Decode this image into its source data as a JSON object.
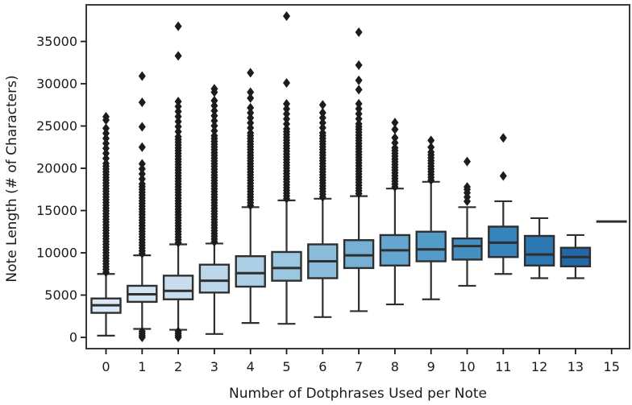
{
  "chart_data": {
    "type": "box",
    "title": "",
    "xlabel": "Number of Dotphrases Used per Note",
    "ylabel": "Note Length (# of Characters)",
    "ylim": [
      -1300,
      39300
    ],
    "grid": false,
    "legend": null,
    "y_ticks": [
      {
        "value": 0,
        "label": "0"
      },
      {
        "value": 5000,
        "label": "5000"
      },
      {
        "value": 10000,
        "label": "10000"
      },
      {
        "value": 15000,
        "label": "15000"
      },
      {
        "value": 20000,
        "label": "20000"
      },
      {
        "value": 25000,
        "label": "25000"
      },
      {
        "value": 30000,
        "label": "30000"
      },
      {
        "value": 35000,
        "label": "35000"
      }
    ],
    "colors": {
      "edge": "#2f2f2f",
      "flier": "#1c1c1c",
      "spine": "#3a3a3a",
      "tick": "#1a1a1a"
    },
    "categories": [
      {
        "label": "0",
        "color": "#dbe9f6",
        "single": false,
        "stats": {
          "whislo": 200,
          "q1": 2900,
          "med": 3800,
          "q3": 4600,
          "whishi": 7500
        },
        "fliers": {
          "low": [],
          "high_band": {
            "min": 7700,
            "max": 25200,
            "step": 330
          },
          "high_points": [
            25700,
            26100
          ]
        }
      },
      {
        "label": "1",
        "color": "#d2e3f1",
        "single": false,
        "stats": {
          "whislo": 1000,
          "q1": 4200,
          "med": 5100,
          "q3": 6100,
          "whishi": 9700
        },
        "fliers": {
          "low": [
            0,
            200,
            450,
            700
          ],
          "high_band": {
            "min": 9900,
            "max": 20900,
            "step": 330
          },
          "high_points": [
            22500,
            24900,
            27800,
            30900
          ]
        }
      },
      {
        "label": "2",
        "color": "#c9ddee",
        "single": false,
        "stats": {
          "whislo": 900,
          "q1": 4500,
          "med": 5500,
          "q3": 7300,
          "whishi": 11000
        },
        "fliers": {
          "low": [
            0,
            200,
            450,
            700
          ],
          "high_band": {
            "min": 11200,
            "max": 28200,
            "step": 330
          },
          "high_points": [
            33300,
            36800
          ]
        }
      },
      {
        "label": "3",
        "color": "#bdd7ea",
        "single": false,
        "stats": {
          "whislo": 400,
          "q1": 5300,
          "med": 6700,
          "q3": 8600,
          "whishi": 11100
        },
        "fliers": {
          "low": [],
          "high_band": {
            "min": 11300,
            "max": 28300,
            "step": 330
          },
          "high_points": [
            29000,
            29400
          ]
        }
      },
      {
        "label": "4",
        "color": "#adcfe6",
        "single": false,
        "stats": {
          "whislo": 1700,
          "q1": 6000,
          "med": 7600,
          "q3": 9600,
          "whishi": 15400
        },
        "fliers": {
          "low": [],
          "high_band": {
            "min": 15600,
            "max": 27200,
            "step": 330
          },
          "high_points": [
            28300,
            29000,
            31300
          ]
        }
      },
      {
        "label": "5",
        "color": "#9cc7e1",
        "single": false,
        "stats": {
          "whislo": 1600,
          "q1": 6700,
          "med": 8200,
          "q3": 10100,
          "whishi": 16200
        },
        "fliers": {
          "low": [],
          "high_band": {
            "min": 16400,
            "max": 27800,
            "step": 330
          },
          "high_points": [
            30100,
            38000
          ]
        }
      },
      {
        "label": "6",
        "color": "#89bcdb",
        "single": false,
        "stats": {
          "whislo": 2400,
          "q1": 7000,
          "med": 9000,
          "q3": 11000,
          "whishi": 16400
        },
        "fliers": {
          "low": [],
          "high_band": {
            "min": 16600,
            "max": 26900,
            "step": 330
          },
          "high_points": [
            27500
          ]
        }
      },
      {
        "label": "7",
        "color": "#76b1d5",
        "single": false,
        "stats": {
          "whislo": 3100,
          "q1": 8200,
          "med": 9700,
          "q3": 11500,
          "whishi": 16700
        },
        "fliers": {
          "low": [],
          "high_band": {
            "min": 17000,
            "max": 28000,
            "step": 330
          },
          "high_points": [
            29300,
            30400,
            32200,
            36100
          ]
        }
      },
      {
        "label": "8",
        "color": "#64a6cf",
        "single": false,
        "stats": {
          "whislo": 3900,
          "q1": 8500,
          "med": 10300,
          "q3": 12100,
          "whishi": 17600
        },
        "fliers": {
          "low": [],
          "high_band": {
            "min": 17800,
            "max": 23900,
            "step": 330
          },
          "high_points": [
            24600,
            25400
          ]
        }
      },
      {
        "label": "9",
        "color": "#539bc9",
        "single": false,
        "stats": {
          "whislo": 4500,
          "q1": 9000,
          "med": 10400,
          "q3": 12500,
          "whishi": 18400
        },
        "fliers": {
          "low": [],
          "high_band": {
            "min": 18600,
            "max": 23000,
            "step": 330
          },
          "high_points": [
            23300
          ]
        }
      },
      {
        "label": "10",
        "color": "#4590c3",
        "single": false,
        "stats": {
          "whislo": 6100,
          "q1": 9200,
          "med": 10800,
          "q3": 11700,
          "whishi": 15400
        },
        "fliers": {
          "low": [],
          "high_band": null,
          "high_points": [
            16100,
            16600,
            17100,
            17500,
            17800,
            20800
          ]
        }
      },
      {
        "label": "11",
        "color": "#3684bc",
        "single": false,
        "stats": {
          "whislo": 7500,
          "q1": 9500,
          "med": 11200,
          "q3": 13100,
          "whishi": 16100
        },
        "fliers": {
          "low": [],
          "high_band": null,
          "high_points": [
            19100,
            23600
          ]
        }
      },
      {
        "label": "12",
        "color": "#2b77b2",
        "single": false,
        "stats": {
          "whislo": 7000,
          "q1": 8500,
          "med": 9800,
          "q3": 12000,
          "whishi": 14100
        },
        "fliers": {
          "low": [],
          "high_band": null,
          "high_points": []
        }
      },
      {
        "label": "13",
        "color": "#2268a8",
        "single": false,
        "stats": {
          "whislo": 7000,
          "q1": 8400,
          "med": 9500,
          "q3": 10600,
          "whishi": 12100
        },
        "fliers": {
          "low": [],
          "high_band": null,
          "high_points": []
        }
      },
      {
        "label": "15",
        "color": "#1a5c9f",
        "single": true,
        "stats": {
          "med": 13700
        },
        "fliers": {
          "low": [],
          "high_band": null,
          "high_points": []
        }
      }
    ]
  }
}
